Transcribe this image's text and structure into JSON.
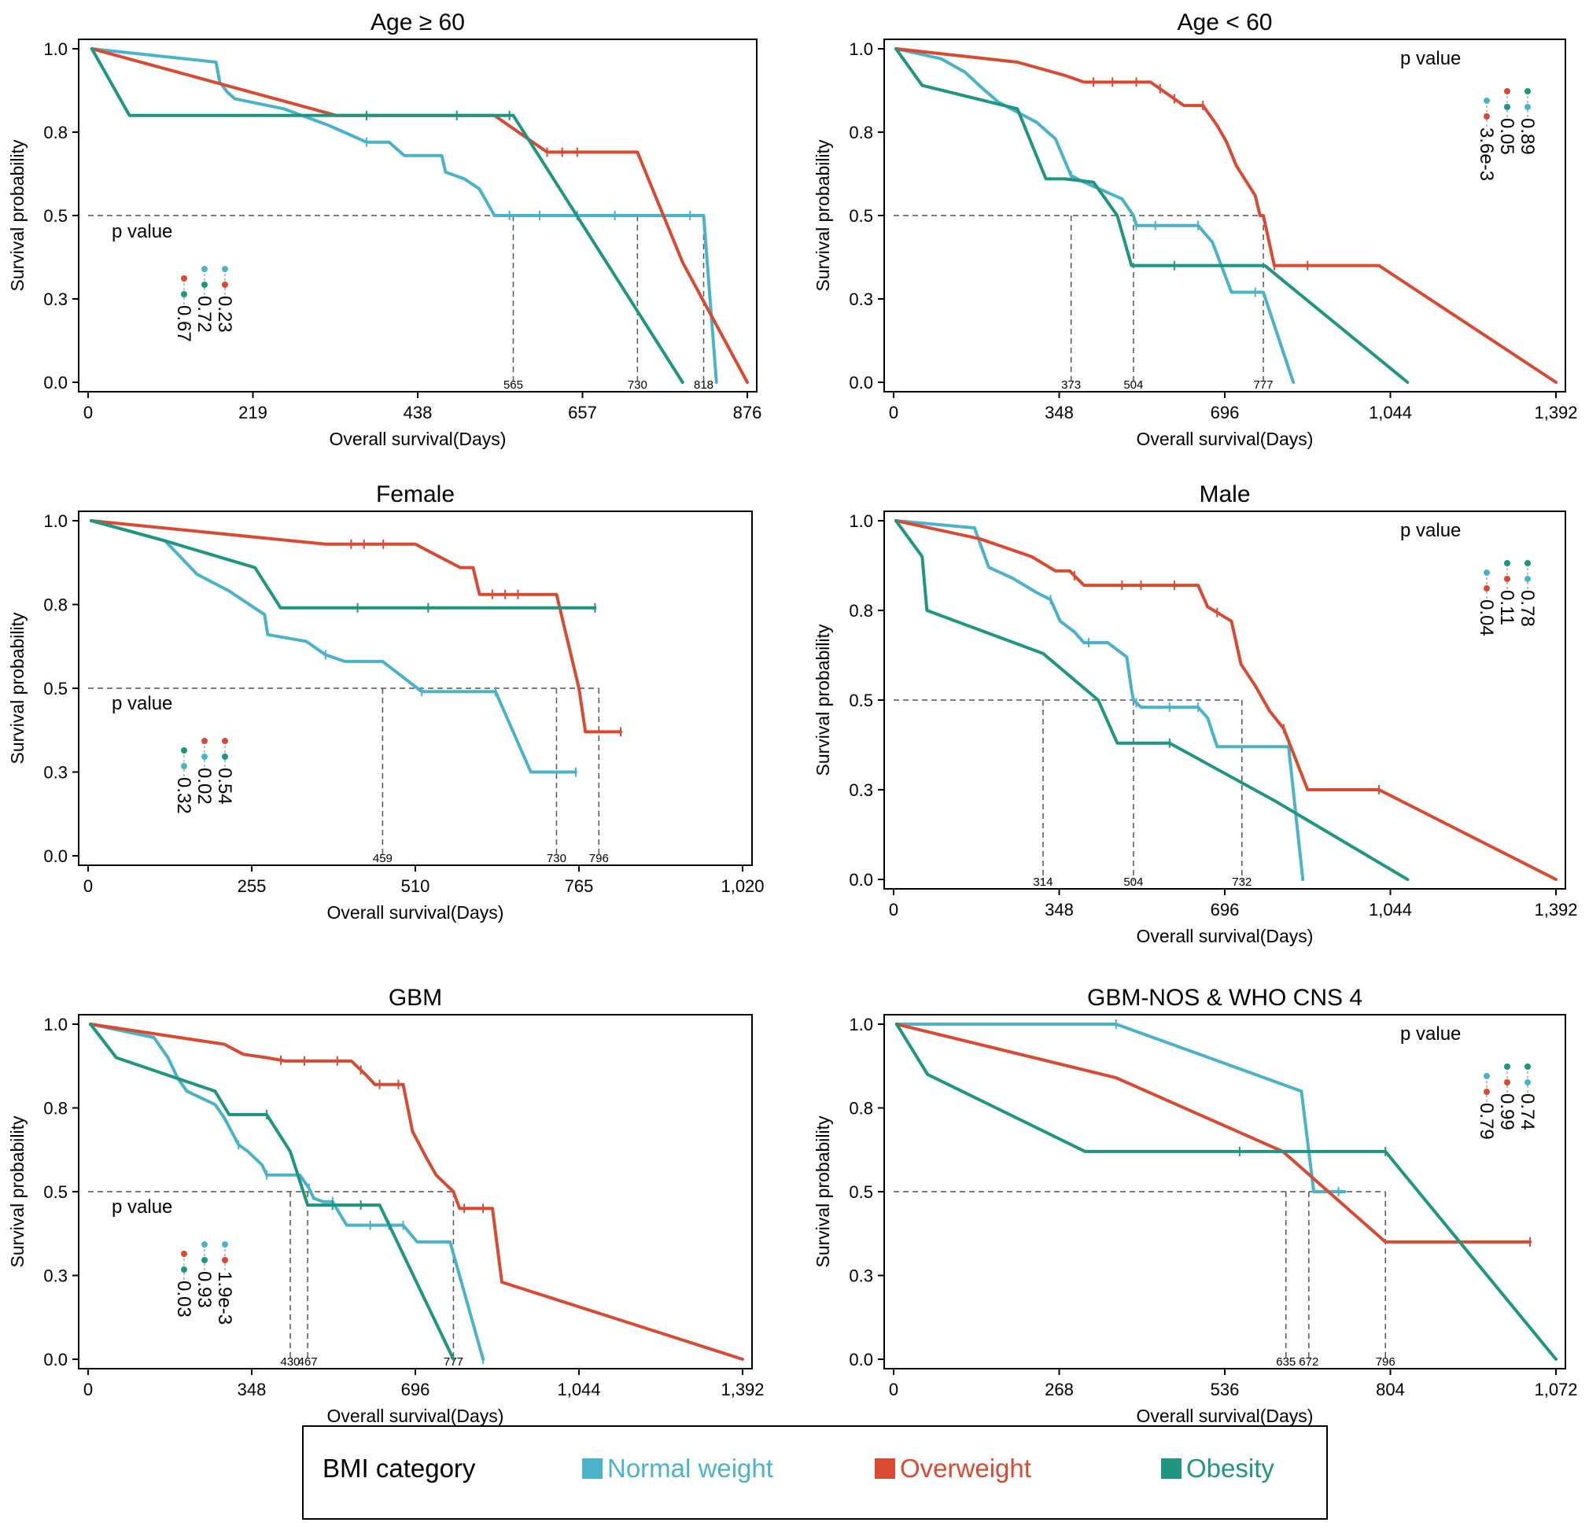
{
  "colors": {
    "normal": "#4bb3c9",
    "overweight": "#d94a33",
    "obesity": "#1f9680"
  },
  "legend": {
    "title": "BMI category",
    "items": [
      {
        "key": "normal",
        "label": "Normal weight"
      },
      {
        "key": "overweight",
        "label": "Overweight"
      },
      {
        "key": "obesity",
        "label": "Obesity"
      }
    ]
  },
  "chart_data": [
    {
      "type": "line",
      "title": "Age ≥ 60",
      "xlabel": "Overall survival(Days)",
      "ylabel": "Survival probability",
      "xlim": [
        0,
        876
      ],
      "xticks": [
        "0",
        "219",
        "438",
        "657",
        "876"
      ],
      "yticks": [
        "0.0",
        "0.3",
        "0.5",
        "0.8",
        "1.0"
      ],
      "pvalue_label": "p value",
      "pvalues": [
        {
          "pair": [
            "overweight",
            "obesity"
          ],
          "value": "0.67"
        },
        {
          "pair": [
            "normal",
            "obesity"
          ],
          "value": "0.72"
        },
        {
          "pair": [
            "normal",
            "overweight"
          ],
          "value": "0.23"
        }
      ],
      "median_lines": [
        565,
        730,
        818
      ],
      "median_labels": [
        "565",
        "730",
        "818"
      ],
      "series": [
        {
          "name": "Normal weight",
          "key": "normal",
          "x": [
            5,
            170,
            175,
            185,
            195,
            260,
            320,
            340,
            370,
            400,
            420,
            450,
            470,
            475,
            500,
            520,
            540,
            560,
            600,
            650,
            700,
            750,
            800,
            815,
            818,
            835
          ],
          "y": [
            1.0,
            0.96,
            0.9,
            0.87,
            0.85,
            0.82,
            0.77,
            0.75,
            0.72,
            0.72,
            0.68,
            0.68,
            0.68,
            0.63,
            0.61,
            0.58,
            0.5,
            0.5,
            0.5,
            0.5,
            0.5,
            0.5,
            0.5,
            0.5,
            0.5,
            0.0
          ],
          "censor_x": [
            370,
            560,
            600,
            650,
            700,
            800
          ]
        },
        {
          "name": "Overweight",
          "key": "overweight",
          "x": [
            5,
            330,
            540,
            610,
            720,
            730,
            790,
            876
          ],
          "y": [
            1.0,
            0.8,
            0.8,
            0.69,
            0.69,
            0.69,
            0.36,
            0.0
          ],
          "censor_x": [
            610,
            630,
            650
          ]
        },
        {
          "name": "Obesity",
          "key": "obesity",
          "x": [
            5,
            55,
            370,
            420,
            490,
            560,
            565,
            790
          ],
          "y": [
            1.0,
            0.8,
            0.8,
            0.8,
            0.8,
            0.8,
            0.8,
            0.0
          ],
          "censor_x": [
            370,
            490,
            560
          ]
        }
      ]
    },
    {
      "type": "line",
      "title": "Age < 60",
      "xlabel": "Overall survival(Days)",
      "ylabel": "Survival probability",
      "xlim": [
        0,
        1392
      ],
      "xticks": [
        "0",
        "348",
        "696",
        "1,044",
        "1,392"
      ],
      "yticks": [
        "0.0",
        "0.3",
        "0.5",
        "0.8",
        "1.0"
      ],
      "pvalue_label": "p value",
      "pvalues": [
        {
          "pair": [
            "normal",
            "overweight"
          ],
          "value": "3.6e-3"
        },
        {
          "pair": [
            "overweight",
            "obesity"
          ],
          "value": "0.05"
        },
        {
          "pair": [
            "obesity",
            "normal"
          ],
          "value": "0.89"
        }
      ],
      "median_lines": [
        373,
        504,
        777
      ],
      "median_labels": [
        "373",
        "504",
        "777"
      ],
      "series": [
        {
          "name": "Normal weight",
          "key": "normal",
          "x": [
            5,
            100,
            150,
            180,
            220,
            300,
            340,
            373,
            400,
            480,
            504,
            510,
            600,
            640,
            670,
            710,
            760,
            777,
            840
          ],
          "y": [
            1.0,
            0.97,
            0.93,
            0.89,
            0.84,
            0.78,
            0.73,
            0.62,
            0.6,
            0.55,
            0.5,
            0.47,
            0.47,
            0.47,
            0.42,
            0.27,
            0.27,
            0.27,
            0.0
          ],
          "censor_x": [
            373,
            510,
            550,
            640,
            760
          ]
        },
        {
          "name": "Overweight",
          "key": "overweight",
          "x": [
            5,
            260,
            360,
            400,
            490,
            540,
            580,
            610,
            650,
            680,
            700,
            720,
            760,
            770,
            777,
            800,
            1020,
            1392
          ],
          "y": [
            1.0,
            0.96,
            0.92,
            0.9,
            0.9,
            0.9,
            0.86,
            0.83,
            0.83,
            0.77,
            0.72,
            0.65,
            0.56,
            0.5,
            0.5,
            0.35,
            0.35,
            0.0
          ],
          "censor_x": [
            420,
            460,
            510,
            560,
            590,
            650,
            800,
            870
          ]
        },
        {
          "name": "Obesity",
          "key": "obesity",
          "x": [
            5,
            60,
            260,
            320,
            360,
            420,
            470,
            500,
            590,
            780,
            1080
          ],
          "y": [
            1.0,
            0.89,
            0.82,
            0.61,
            0.61,
            0.6,
            0.5,
            0.35,
            0.35,
            0.35,
            0.0
          ],
          "censor_x": [
            590
          ]
        }
      ]
    },
    {
      "type": "line",
      "title": "Female",
      "xlabel": "Overall survival(Days)",
      "ylabel": "Survival probability",
      "xlim": [
        0,
        1020
      ],
      "xticks": [
        "0",
        "255",
        "510",
        "765",
        "1,020"
      ],
      "yticks": [
        "0.0",
        "0.3",
        "0.5",
        "0.8",
        "1.0"
      ],
      "pvalue_label": "p value",
      "pvalues": [
        {
          "pair": [
            "obesity",
            "normal"
          ],
          "value": "0.32"
        },
        {
          "pair": [
            "overweight",
            "normal"
          ],
          "value": "0.02"
        },
        {
          "pair": [
            "overweight",
            "obesity"
          ],
          "value": "0.54"
        }
      ],
      "median_lines": [
        459,
        730,
        796
      ],
      "median_labels": [
        "459",
        "730",
        "796"
      ],
      "series": [
        {
          "name": "Normal weight",
          "key": "normal",
          "x": [
            5,
            120,
            170,
            220,
            275,
            280,
            340,
            370,
            400,
            459,
            520,
            600,
            635,
            690,
            760
          ],
          "y": [
            1.0,
            0.94,
            0.84,
            0.79,
            0.72,
            0.66,
            0.64,
            0.6,
            0.58,
            0.58,
            0.49,
            0.49,
            0.49,
            0.25,
            0.25
          ],
          "censor_x": [
            370,
            520,
            635,
            760
          ]
        },
        {
          "name": "Overweight",
          "key": "overweight",
          "x": [
            5,
            370,
            510,
            580,
            600,
            610,
            730,
            765,
            775,
            830
          ],
          "y": [
            1.0,
            0.93,
            0.93,
            0.86,
            0.86,
            0.78,
            0.78,
            0.5,
            0.37,
            0.37
          ],
          "censor_x": [
            410,
            430,
            460,
            630,
            650,
            670,
            830
          ]
        },
        {
          "name": "Obesity",
          "key": "obesity",
          "x": [
            5,
            120,
            260,
            300,
            500,
            790
          ],
          "y": [
            1.0,
            0.94,
            0.86,
            0.74,
            0.74,
            0.74
          ],
          "censor_x": [
            420,
            530,
            790
          ]
        }
      ]
    },
    {
      "type": "line",
      "title": "Male",
      "xlabel": "Overall survival(Days)",
      "ylabel": "Survival probability",
      "xlim": [
        0,
        1392
      ],
      "xticks": [
        "0",
        "348",
        "696",
        "1,044",
        "1,392"
      ],
      "yticks": [
        "0.0",
        "0.3",
        "0.5",
        "0.8",
        "1.0"
      ],
      "pvalue_label": "p value",
      "pvalues": [
        {
          "pair": [
            "normal",
            "overweight"
          ],
          "value": "0.04"
        },
        {
          "pair": [
            "obesity",
            "overweight"
          ],
          "value": "0.11"
        },
        {
          "pair": [
            "obesity",
            "normal"
          ],
          "value": "0.78"
        }
      ],
      "median_lines": [
        314,
        504,
        732
      ],
      "median_labels": [
        "314",
        "504",
        "732"
      ],
      "series": [
        {
          "name": "Normal weight",
          "key": "normal",
          "x": [
            5,
            170,
            200,
            250,
            300,
            330,
            350,
            380,
            400,
            450,
            490,
            500,
            504,
            520,
            640,
            660,
            680,
            700,
            830,
            860
          ],
          "y": [
            1.0,
            0.98,
            0.87,
            0.84,
            0.8,
            0.78,
            0.72,
            0.69,
            0.66,
            0.66,
            0.62,
            0.53,
            0.5,
            0.48,
            0.48,
            0.45,
            0.37,
            0.37,
            0.37,
            0.0
          ],
          "censor_x": [
            330,
            410,
            510,
            580,
            640,
            830
          ]
        },
        {
          "name": "Overweight",
          "key": "overweight",
          "x": [
            5,
            180,
            290,
            340,
            370,
            400,
            520,
            600,
            640,
            660,
            710,
            730,
            760,
            790,
            820,
            870,
            1020,
            1392
          ],
          "y": [
            1.0,
            0.95,
            0.9,
            0.86,
            0.86,
            0.82,
            0.82,
            0.82,
            0.82,
            0.76,
            0.72,
            0.6,
            0.54,
            0.47,
            0.42,
            0.25,
            0.25,
            0.0
          ],
          "censor_x": [
            380,
            480,
            520,
            590,
            680,
            820,
            1020
          ]
        },
        {
          "name": "Obesity",
          "key": "obesity",
          "x": [
            5,
            60,
            70,
            314,
            430,
            470,
            580,
            800,
            1080
          ],
          "y": [
            1.0,
            0.9,
            0.75,
            0.63,
            0.5,
            0.38,
            0.38,
            0.22,
            0.0
          ],
          "censor_x": [
            580
          ]
        }
      ]
    },
    {
      "type": "line",
      "title": "GBM",
      "xlabel": "Overall survival(Days)",
      "ylabel": "Survival probability",
      "xlim": [
        0,
        1392
      ],
      "xticks": [
        "0",
        "348",
        "696",
        "1,044",
        "1,392"
      ],
      "yticks": [
        "0.0",
        "0.3",
        "0.5",
        "0.8",
        "1.0"
      ],
      "pvalue_label": "p value",
      "pvalues": [
        {
          "pair": [
            "overweight",
            "obesity"
          ],
          "value": "0.03"
        },
        {
          "pair": [
            "normal",
            "obesity"
          ],
          "value": "0.93"
        },
        {
          "pair": [
            "normal",
            "overweight"
          ],
          "value": "1.9e-3"
        }
      ],
      "median_lines": [
        430,
        467,
        777
      ],
      "median_labels": [
        "430",
        "467",
        "777"
      ],
      "series": [
        {
          "name": "Normal weight",
          "key": "normal",
          "x": [
            5,
            140,
            170,
            190,
            210,
            270,
            290,
            320,
            340,
            370,
            380,
            450,
            470,
            480,
            500,
            520,
            550,
            580,
            600,
            640,
            670,
            700,
            760,
            770,
            840
          ],
          "y": [
            1.0,
            0.96,
            0.9,
            0.84,
            0.8,
            0.76,
            0.72,
            0.64,
            0.62,
            0.58,
            0.55,
            0.55,
            0.51,
            0.48,
            0.47,
            0.47,
            0.4,
            0.4,
            0.4,
            0.4,
            0.4,
            0.35,
            0.35,
            0.35,
            0.0
          ],
          "censor_x": [
            320,
            380,
            470,
            520,
            600,
            640,
            670,
            840
          ]
        },
        {
          "name": "Overweight",
          "key": "overweight",
          "x": [
            5,
            290,
            330,
            380,
            420,
            560,
            590,
            610,
            640,
            670,
            690,
            720,
            740,
            777,
            790,
            860,
            880,
            1392
          ],
          "y": [
            1.0,
            0.94,
            0.91,
            0.9,
            0.89,
            0.89,
            0.85,
            0.82,
            0.82,
            0.82,
            0.68,
            0.6,
            0.55,
            0.5,
            0.45,
            0.45,
            0.23,
            0.0
          ],
          "censor_x": [
            410,
            460,
            530,
            580,
            620,
            660,
            800,
            840
          ]
        },
        {
          "name": "Obesity",
          "key": "obesity",
          "x": [
            5,
            60,
            270,
            300,
            380,
            430,
            467,
            580,
            620,
            777
          ],
          "y": [
            1.0,
            0.9,
            0.8,
            0.73,
            0.73,
            0.62,
            0.46,
            0.46,
            0.46,
            0.0
          ],
          "censor_x": [
            380,
            520,
            580
          ]
        }
      ]
    },
    {
      "type": "line",
      "title": "GBM-NOS & WHO CNS 4",
      "xlabel": "Overall survival(Days)",
      "ylabel": "Survival probability",
      "xlim": [
        0,
        1072
      ],
      "xticks": [
        "0",
        "268",
        "536",
        "804",
        "1,072"
      ],
      "yticks": [
        "0.0",
        "0.3",
        "0.5",
        "0.8",
        "1.0"
      ],
      "pvalue_label": "p value",
      "pvalues": [
        {
          "pair": [
            "normal",
            "overweight"
          ],
          "value": "0.79"
        },
        {
          "pair": [
            "obesity",
            "overweight"
          ],
          "value": "0.99"
        },
        {
          "pair": [
            "obesity",
            "normal"
          ],
          "value": "0.74"
        }
      ],
      "median_lines": [
        635,
        672,
        796
      ],
      "median_labels": [
        "635",
        "672",
        "796"
      ],
      "series": [
        {
          "name": "Normal weight",
          "key": "normal",
          "x": [
            5,
            360,
            660,
            680,
            730
          ],
          "y": [
            1.0,
            1.0,
            0.8,
            0.5,
            0.5
          ],
          "censor_x": [
            360,
            720
          ]
        },
        {
          "name": "Overweight",
          "key": "overweight",
          "x": [
            5,
            360,
            630,
            796,
            1030
          ],
          "y": [
            1.0,
            0.84,
            0.62,
            0.35,
            0.35
          ],
          "censor_x": [
            1030
          ]
        },
        {
          "name": "Obesity",
          "key": "obesity",
          "x": [
            5,
            55,
            310,
            630,
            796,
            1072
          ],
          "y": [
            1.0,
            0.85,
            0.62,
            0.62,
            0.62,
            0.0
          ],
          "censor_x": [
            560,
            796
          ]
        }
      ]
    }
  ]
}
